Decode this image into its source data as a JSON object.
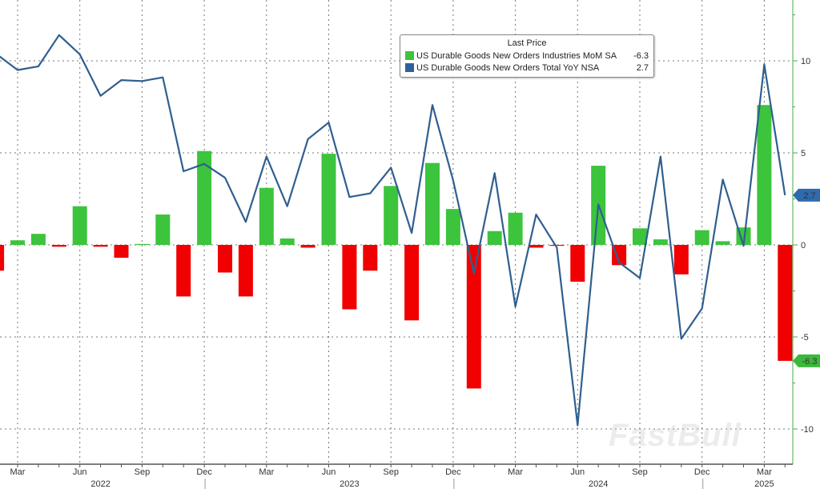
{
  "chart_data": {
    "type": "bar+line",
    "legend_title": "Last Price",
    "legend_placement": "top-center",
    "grid": true,
    "months": [
      "2022-02",
      "2022-03",
      "2022-04",
      "2022-05",
      "2022-06",
      "2022-07",
      "2022-08",
      "2022-09",
      "2022-10",
      "2022-11",
      "2022-12",
      "2023-01",
      "2023-02",
      "2023-03",
      "2023-04",
      "2023-05",
      "2023-06",
      "2023-07",
      "2023-08",
      "2023-09",
      "2023-10",
      "2023-11",
      "2023-12",
      "2024-01",
      "2024-02",
      "2024-03",
      "2024-04",
      "2024-05",
      "2024-06",
      "2024-07",
      "2024-08",
      "2024-09",
      "2024-10",
      "2024-11",
      "2024-12",
      "2025-01",
      "2025-02",
      "2025-03",
      "2025-04"
    ],
    "series": [
      {
        "name": "US Durable Goods New Orders Industries MoM SA",
        "last": "-6.3",
        "type": "bar",
        "color_pos": "#3cc43c",
        "color_neg": "#f00000",
        "values": [
          -1.4,
          0.25,
          0.6,
          -0.1,
          2.1,
          -0.1,
          -0.7,
          0.05,
          1.65,
          -2.8,
          5.1,
          -1.5,
          -2.8,
          3.1,
          0.35,
          -0.15,
          4.95,
          -3.5,
          -1.4,
          3.2,
          -4.1,
          4.45,
          1.95,
          -7.8,
          0.75,
          1.75,
          -0.15,
          -0.05,
          -2.0,
          4.3,
          -1.1,
          0.9,
          0.3,
          -1.6,
          0.8,
          0.2,
          0.95,
          7.6,
          -6.3
        ]
      },
      {
        "name": "US Durable Goods New Orders Total YoY NSA",
        "last": "2.7",
        "type": "line",
        "color": "#2f5f8f",
        "values": [
          10.35,
          9.5,
          9.7,
          11.4,
          10.35,
          8.1,
          8.95,
          8.9,
          9.1,
          4.0,
          4.4,
          3.65,
          1.25,
          4.8,
          2.1,
          5.75,
          6.65,
          2.6,
          2.8,
          4.2,
          0.65,
          7.6,
          3.5,
          -1.55,
          3.9,
          -3.35,
          1.65,
          -0.15,
          -9.8,
          2.2,
          -0.95,
          -1.8,
          4.8,
          -5.1,
          -3.45,
          3.55,
          -0.05,
          9.8,
          2.7
        ]
      }
    ],
    "ylim": [
      -12,
      13
    ],
    "yticks": [
      "10",
      "5",
      "0",
      "-5",
      "-10"
    ],
    "ytick_values": [
      10,
      5,
      0,
      -5,
      -10
    ],
    "xticks": [
      "Mar",
      "Jun",
      "Sep",
      "Dec",
      "Mar",
      "Jun",
      "Sep",
      "Dec",
      "Mar",
      "Jun",
      "Sep",
      "Dec",
      "Mar"
    ],
    "xtick_months": [
      "2022-03",
      "2022-06",
      "2022-09",
      "2022-12",
      "2023-03",
      "2023-06",
      "2023-09",
      "2023-12",
      "2024-03",
      "2024-06",
      "2024-09",
      "2024-12",
      "2025-03"
    ],
    "years": [
      "2022",
      "2023",
      "2024",
      "2025"
    ],
    "badges": [
      {
        "text": "2.7",
        "value": 2.7,
        "color": "#2f6aad"
      },
      {
        "text": "-6.3",
        "value": -6.3,
        "color": "#3cb83c"
      }
    ]
  },
  "watermark": "FastBull"
}
